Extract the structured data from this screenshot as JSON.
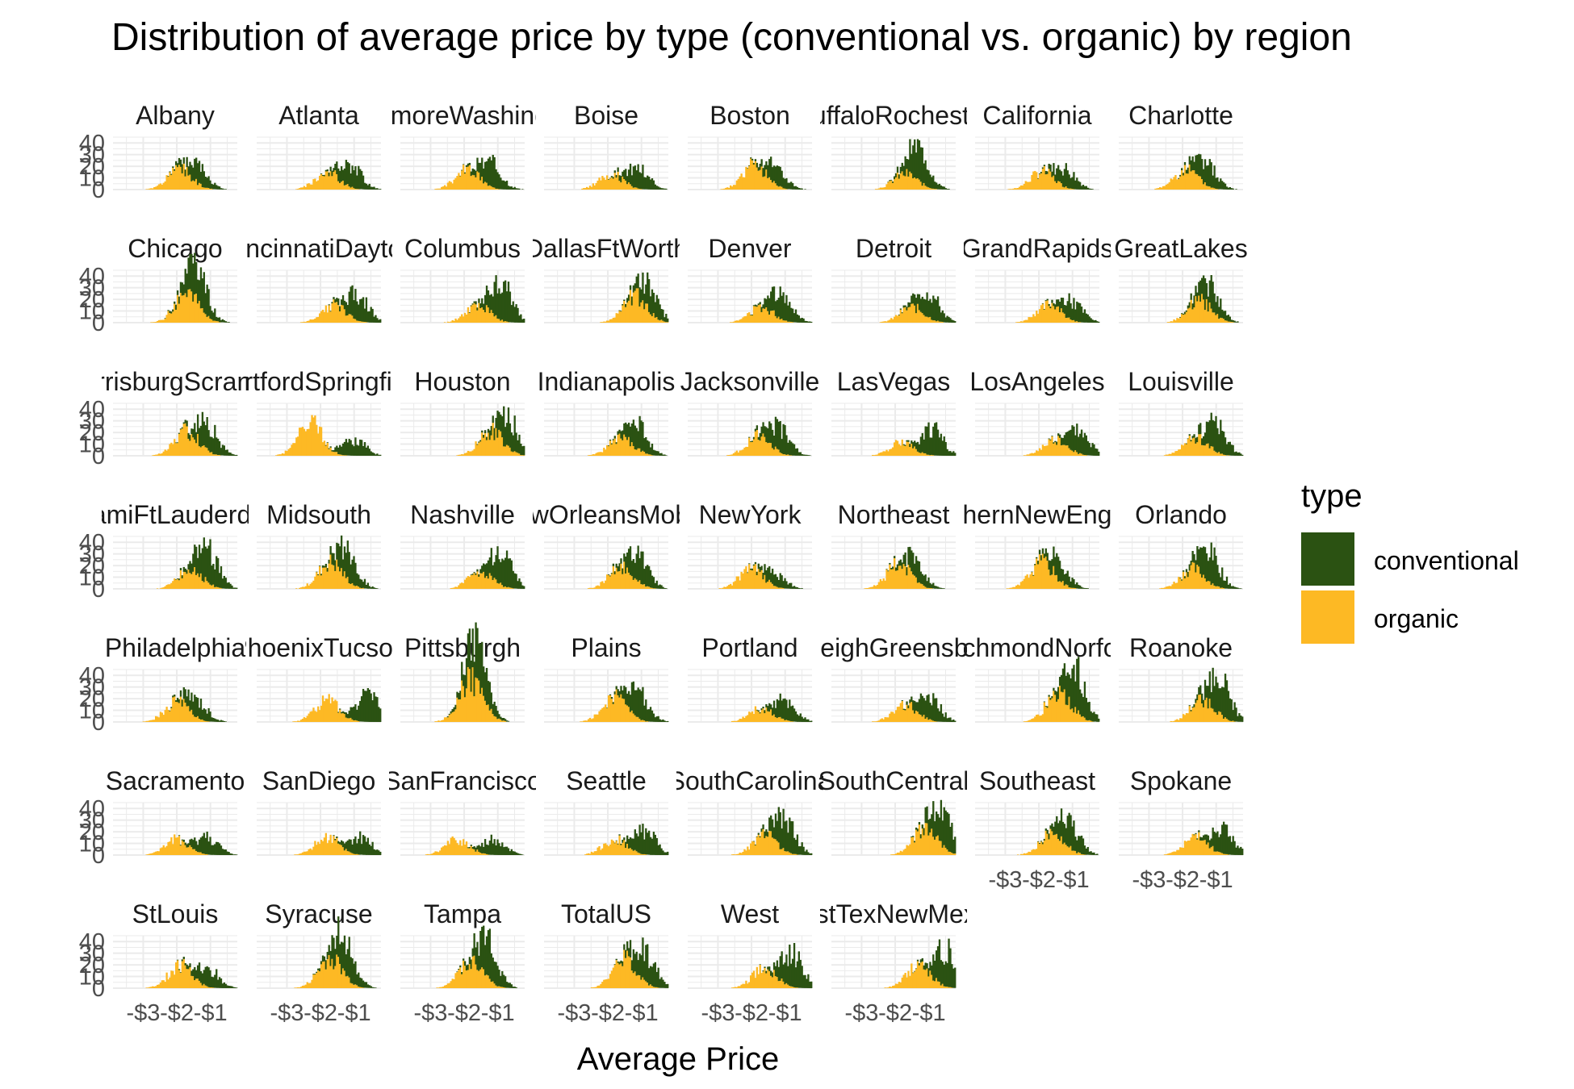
{
  "chart_data": {
    "type": "bar",
    "subtype": "faceted-stacked-histogram",
    "title": "Distribution of average price by type (conventional vs. organic) by region",
    "xlabel": "Average Price",
    "ylabel": "",
    "y_ticks": [
      0,
      10,
      20,
      30,
      40
    ],
    "x_ticks": [
      "-$3",
      "-$2",
      "-$1"
    ],
    "x_tick_values": [
      -3,
      -2,
      -1
    ],
    "xlim": [
      -3.9,
      -0.2
    ],
    "ylim": [
      0,
      45
    ],
    "legend": {
      "title": "type",
      "position": "right",
      "entries": [
        {
          "name": "conventional",
          "color": "#2b5212"
        },
        {
          "name": "organic",
          "color": "#fdb924"
        }
      ]
    },
    "colors": {
      "conventional": "#2b5212",
      "organic": "#fdb924"
    },
    "grid": true,
    "facet_columns": 8,
    "facets": [
      {
        "label": "Albany",
        "conv_peak": 22,
        "conv_center": -1.4,
        "org_peak": 18,
        "org_center": -1.9
      },
      {
        "label": "Atlanta",
        "conv_peak": 24,
        "conv_center": -1.1,
        "org_peak": 16,
        "org_center": -1.8
      },
      {
        "label": "BaltimoreWashington",
        "conv_peak": 26,
        "conv_center": -1.2,
        "org_peak": 18,
        "org_center": -1.9
      },
      {
        "label": "Boise",
        "conv_peak": 22,
        "conv_center": -1.1,
        "org_peak": 14,
        "org_center": -1.9
      },
      {
        "label": "Boston",
        "conv_peak": 20,
        "conv_center": -1.3,
        "org_peak": 22,
        "org_center": -1.9
      },
      {
        "label": "BuffaloRochester",
        "conv_peak": 36,
        "conv_center": -1.3,
        "org_peak": 14,
        "org_center": -1.7
      },
      {
        "label": "California",
        "conv_peak": 20,
        "conv_center": -1.2,
        "org_peak": 16,
        "org_center": -1.9
      },
      {
        "label": "Charlotte",
        "conv_peak": 24,
        "conv_center": -1.3,
        "org_peak": 18,
        "org_center": -1.9
      },
      {
        "label": "Chicago",
        "conv_peak": 40,
        "conv_center": -1.4,
        "org_peak": 26,
        "org_center": -1.7
      },
      {
        "label": "CincinnatiDayton",
        "conv_peak": 30,
        "conv_center": -0.9,
        "org_peak": 16,
        "org_center": -1.6
      },
      {
        "label": "Columbus",
        "conv_peak": 42,
        "conv_center": -0.9,
        "org_peak": 16,
        "org_center": -1.6
      },
      {
        "label": "DallasFtWorth",
        "conv_peak": 26,
        "conv_center": -0.8,
        "org_peak": 24,
        "org_center": -1.2
      },
      {
        "label": "Denver",
        "conv_peak": 30,
        "conv_center": -1.1,
        "org_peak": 14,
        "org_center": -1.7
      },
      {
        "label": "Detroit",
        "conv_peak": 28,
        "conv_center": -1.0,
        "org_peak": 14,
        "org_center": -1.5
      },
      {
        "label": "GrandRapids",
        "conv_peak": 20,
        "conv_center": -1.0,
        "org_peak": 16,
        "org_center": -1.7
      },
      {
        "label": "GreatLakes",
        "conv_peak": 28,
        "conv_center": -1.2,
        "org_peak": 20,
        "org_center": -1.5
      },
      {
        "label": "HarrisburgScranton",
        "conv_peak": 30,
        "conv_center": -1.1,
        "org_peak": 22,
        "org_center": -1.7
      },
      {
        "label": "HartfordSpringfield",
        "conv_peak": 18,
        "conv_center": -1.0,
        "org_peak": 30,
        "org_center": -2.3
      },
      {
        "label": "Houston",
        "conv_peak": 34,
        "conv_center": -0.7,
        "org_peak": 22,
        "org_center": -1.2
      },
      {
        "label": "Indianapolis",
        "conv_peak": 26,
        "conv_center": -1.1,
        "org_peak": 16,
        "org_center": -1.6
      },
      {
        "label": "Jacksonville",
        "conv_peak": 28,
        "conv_center": -1.2,
        "org_peak": 18,
        "org_center": -1.8
      },
      {
        "label": "LasVegas",
        "conv_peak": 28,
        "conv_center": -0.9,
        "org_peak": 12,
        "org_center": -1.8
      },
      {
        "label": "LosAngeles",
        "conv_peak": 26,
        "conv_center": -0.8,
        "org_peak": 14,
        "org_center": -1.5
      },
      {
        "label": "Louisville",
        "conv_peak": 30,
        "conv_center": -1.0,
        "org_peak": 16,
        "org_center": -1.6
      },
      {
        "label": "MiamiFtLauderdale",
        "conv_peak": 40,
        "conv_center": -1.1,
        "org_peak": 18,
        "org_center": -1.6
      },
      {
        "label": "Midsouth",
        "conv_peak": 30,
        "conv_center": -1.2,
        "org_peak": 24,
        "org_center": -1.7
      },
      {
        "label": "Nashville",
        "conv_peak": 34,
        "conv_center": -0.9,
        "org_peak": 16,
        "org_center": -1.5
      },
      {
        "label": "NewOrleansMobile",
        "conv_peak": 30,
        "conv_center": -1.1,
        "org_peak": 20,
        "org_center": -1.6
      },
      {
        "label": "NewYork",
        "conv_peak": 14,
        "conv_center": -1.3,
        "org_peak": 18,
        "org_center": -2.0
      },
      {
        "label": "Northeast",
        "conv_peak": 20,
        "conv_center": -1.4,
        "org_peak": 22,
        "org_center": -1.9
      },
      {
        "label": "NorthernNewEngland",
        "conv_peak": 20,
        "conv_center": -1.4,
        "org_peak": 24,
        "org_center": -1.9
      },
      {
        "label": "Orlando",
        "conv_peak": 34,
        "conv_center": -1.2,
        "org_peak": 18,
        "org_center": -1.7
      },
      {
        "label": "Philadelphia",
        "conv_peak": 20,
        "conv_center": -1.4,
        "org_peak": 18,
        "org_center": -2.0
      },
      {
        "label": "PhoenixTucson",
        "conv_peak": 30,
        "conv_center": -0.6,
        "org_peak": 20,
        "org_center": -1.8
      },
      {
        "label": "Pittsburgh",
        "conv_peak": 44,
        "conv_center": -1.6,
        "org_peak": 38,
        "org_center": -1.8
      },
      {
        "label": "Plains",
        "conv_peak": 30,
        "conv_center": -1.1,
        "org_peak": 22,
        "org_center": -1.8
      },
      {
        "label": "Portland",
        "conv_peak": 22,
        "conv_center": -1.0,
        "org_peak": 12,
        "org_center": -1.7
      },
      {
        "label": "RaleighGreensboro",
        "conv_peak": 26,
        "conv_center": -1.0,
        "org_peak": 16,
        "org_center": -1.7
      },
      {
        "label": "RichmondNorfolk",
        "conv_peak": 44,
        "conv_center": -0.9,
        "org_peak": 28,
        "org_center": -1.4
      },
      {
        "label": "Roanoke",
        "conv_peak": 40,
        "conv_center": -0.9,
        "org_peak": 20,
        "org_center": -1.4
      },
      {
        "label": "Sacramento",
        "conv_peak": 20,
        "conv_center": -1.1,
        "org_peak": 14,
        "org_center": -2.0
      },
      {
        "label": "SanDiego",
        "conv_peak": 20,
        "conv_center": -0.8,
        "org_peak": 16,
        "org_center": -1.8
      },
      {
        "label": "SanFrancisco",
        "conv_peak": 18,
        "conv_center": -1.1,
        "org_peak": 14,
        "org_center": -2.2
      },
      {
        "label": "Seattle",
        "conv_peak": 26,
        "conv_center": -0.9,
        "org_peak": 14,
        "org_center": -1.8
      },
      {
        "label": "SouthCarolina",
        "conv_peak": 34,
        "conv_center": -1.0,
        "org_peak": 18,
        "org_center": -1.6
      },
      {
        "label": "SouthCentral",
        "conv_peak": 42,
        "conv_center": -0.6,
        "org_peak": 24,
        "org_center": -1.1
      },
      {
        "label": "Southeast",
        "conv_peak": 30,
        "conv_center": -1.1,
        "org_peak": 20,
        "org_center": -1.6
      },
      {
        "label": "Spokane",
        "conv_peak": 28,
        "conv_center": -0.8,
        "org_peak": 16,
        "org_center": -1.6
      },
      {
        "label": "StLouis",
        "conv_peak": 22,
        "conv_center": -1.1,
        "org_peak": 20,
        "org_center": -1.9
      },
      {
        "label": "Syracuse",
        "conv_peak": 40,
        "conv_center": -1.3,
        "org_peak": 26,
        "org_center": -1.7
      },
      {
        "label": "Tampa",
        "conv_peak": 40,
        "conv_center": -1.3,
        "org_peak": 24,
        "org_center": -1.8
      },
      {
        "label": "TotalUS",
        "conv_peak": 34,
        "conv_center": -0.9,
        "org_peak": 26,
        "org_center": -1.5
      },
      {
        "label": "West",
        "conv_peak": 36,
        "conv_center": -0.8,
        "org_peak": 18,
        "org_center": -1.6
      },
      {
        "label": "WestTexNewMexico",
        "conv_peak": 40,
        "conv_center": -0.5,
        "org_peak": 20,
        "org_center": -1.3
      }
    ]
  }
}
